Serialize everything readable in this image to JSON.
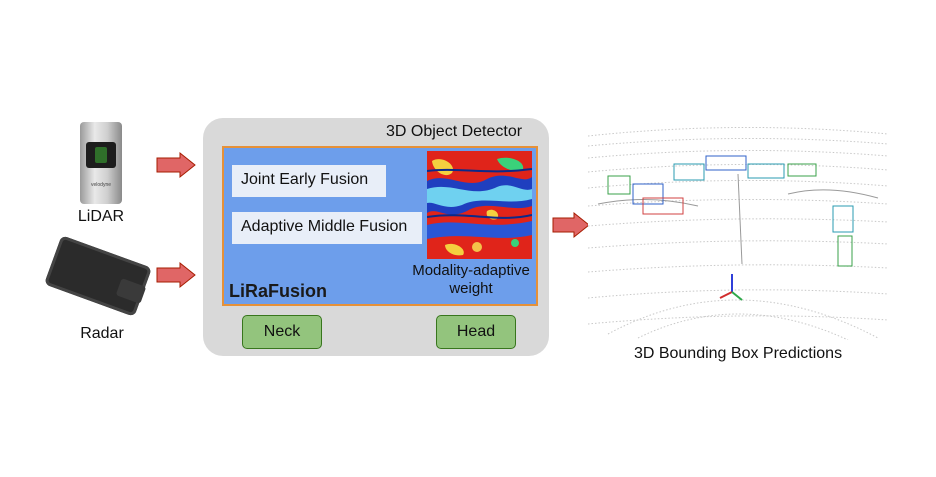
{
  "sensors": {
    "lidar": {
      "label": "LiDAR",
      "brand": "velodyne"
    },
    "radar": {
      "label": "Radar"
    }
  },
  "detector": {
    "title": "3D Object Detector",
    "joint_early_fusion": "Joint Early Fusion",
    "adaptive_middle_fusion": "Adaptive Middle Fusion",
    "model_name": "LiRaFusion",
    "weight_label_line1": "Modality-adaptive",
    "weight_label_line2": "weight",
    "neck": "Neck",
    "head": "Head"
  },
  "output": {
    "label": "3D Bounding Box Predictions"
  },
  "colors": {
    "arrow_fill": "#e06666",
    "arrow_stroke": "#a61c00",
    "panel": "#d9d9d9",
    "inner_blue": "#6d9eeb",
    "inner_border": "#e69138",
    "button_green": "#93c47d",
    "button_border": "#38761d"
  }
}
